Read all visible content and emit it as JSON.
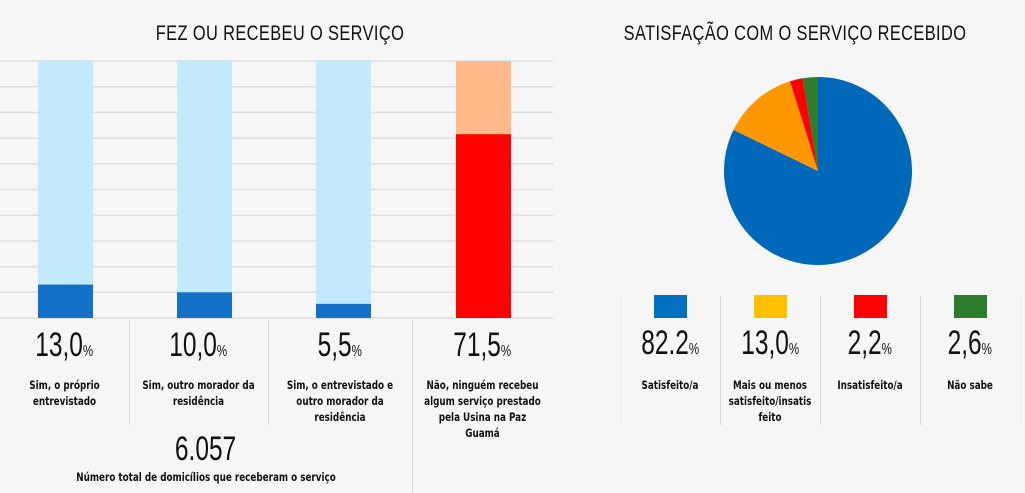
{
  "chart_data": [
    {
      "type": "bar",
      "stacked": true,
      "title": "FEZ OU RECEBEU  O SERVIÇO",
      "ylim": [
        0,
        100
      ],
      "grid": true,
      "categories": [
        "Sim, o próprio entrevistado",
        "Sim, outro morador da residência",
        "Sim, o entrevistado e outro morador da residência",
        "Não, ninguém recebeu algum serviço prestado pela Usina na Paz Guamá"
      ],
      "values": [
        13.0,
        10.0,
        5.5,
        71.5
      ],
      "value_labels": [
        "13,0",
        "10,0",
        "5,5",
        "71,5"
      ],
      "label_lines": [
        [
          "Sim, o próprio",
          "entrevistado"
        ],
        [
          "Sim, outro morador da",
          "residência"
        ],
        [
          "Sim, o entrevistado e",
          "outro morador da",
          "residência"
        ],
        [
          "Não, ninguém recebeu",
          "algum serviço prestado",
          "pela Usina na Paz Guamá"
        ]
      ],
      "bar_colors": [
        "#1570c8",
        "#1570c8",
        "#1570c8",
        "#ff0000"
      ],
      "background_colors": [
        "#c3eafc",
        "#c3eafc",
        "#c3eafc",
        "#ffba8c"
      ],
      "percent_suffix": "%"
    },
    {
      "type": "pie",
      "title": "SATISFAÇÃO COM O SERVIÇO RECEBIDO",
      "categories": [
        "Satisfeito/a",
        "Mais ou menos satisfeito/insatisfeito",
        "Insatisfeito/a",
        "Não sabe"
      ],
      "values": [
        82.2,
        13.0,
        2.2,
        2.6
      ],
      "value_labels": [
        "82.2",
        "13,0",
        "2,2",
        "2,6"
      ],
      "label_lines": [
        [
          "Satisfeito/a"
        ],
        [
          "Mais ou menos",
          "satisfeito/insatis",
          "feito"
        ],
        [
          "Insatisfeito/a"
        ],
        [
          "Não sabe"
        ]
      ],
      "slice_colors": [
        "#0068b8",
        "#ff9800",
        "#ff0000",
        "#2e7d2e"
      ],
      "legend_colors": [
        "#0070c0",
        "#ffc000",
        "#ff0000",
        "#2e7d2e"
      ],
      "start": "top",
      "direction": "clockwise",
      "percent_suffix": "%"
    }
  ],
  "summary": {
    "total_value": "6.057",
    "total_label": "Número total de domicílios que receberam o serviço"
  }
}
